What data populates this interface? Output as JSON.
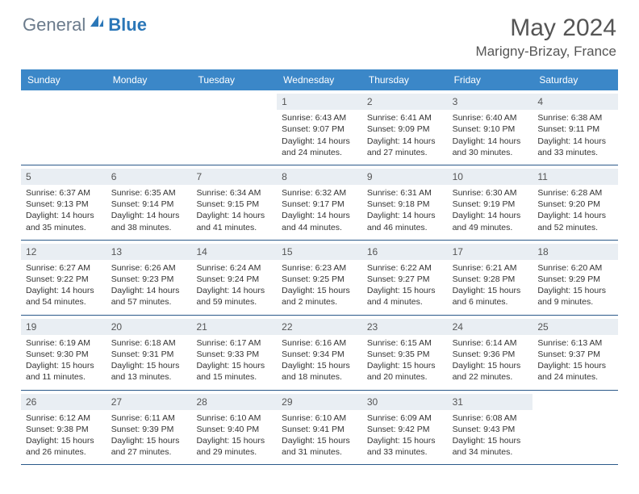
{
  "brand": {
    "part1": "General",
    "part2": "Blue"
  },
  "title": {
    "month": "May 2024",
    "location": "Marigny-Brizay, France"
  },
  "style": {
    "header_bg": "#3b87c8",
    "header_text": "#ffffff",
    "border_color": "#2b5a8a",
    "daynum_bg": "#e9eef3",
    "body_text": "#333333",
    "logo_gray": "#6b7b8c",
    "logo_blue": "#2b77b8"
  },
  "day_headers": [
    "Sunday",
    "Monday",
    "Tuesday",
    "Wednesday",
    "Thursday",
    "Friday",
    "Saturday"
  ],
  "weeks": [
    [
      {
        "n": "",
        "sr": "",
        "ss": "",
        "dl": ""
      },
      {
        "n": "",
        "sr": "",
        "ss": "",
        "dl": ""
      },
      {
        "n": "",
        "sr": "",
        "ss": "",
        "dl": ""
      },
      {
        "n": "1",
        "sr": "Sunrise: 6:43 AM",
        "ss": "Sunset: 9:07 PM",
        "dl": "Daylight: 14 hours and 24 minutes."
      },
      {
        "n": "2",
        "sr": "Sunrise: 6:41 AM",
        "ss": "Sunset: 9:09 PM",
        "dl": "Daylight: 14 hours and 27 minutes."
      },
      {
        "n": "3",
        "sr": "Sunrise: 6:40 AM",
        "ss": "Sunset: 9:10 PM",
        "dl": "Daylight: 14 hours and 30 minutes."
      },
      {
        "n": "4",
        "sr": "Sunrise: 6:38 AM",
        "ss": "Sunset: 9:11 PM",
        "dl": "Daylight: 14 hours and 33 minutes."
      }
    ],
    [
      {
        "n": "5",
        "sr": "Sunrise: 6:37 AM",
        "ss": "Sunset: 9:13 PM",
        "dl": "Daylight: 14 hours and 35 minutes."
      },
      {
        "n": "6",
        "sr": "Sunrise: 6:35 AM",
        "ss": "Sunset: 9:14 PM",
        "dl": "Daylight: 14 hours and 38 minutes."
      },
      {
        "n": "7",
        "sr": "Sunrise: 6:34 AM",
        "ss": "Sunset: 9:15 PM",
        "dl": "Daylight: 14 hours and 41 minutes."
      },
      {
        "n": "8",
        "sr": "Sunrise: 6:32 AM",
        "ss": "Sunset: 9:17 PM",
        "dl": "Daylight: 14 hours and 44 minutes."
      },
      {
        "n": "9",
        "sr": "Sunrise: 6:31 AM",
        "ss": "Sunset: 9:18 PM",
        "dl": "Daylight: 14 hours and 46 minutes."
      },
      {
        "n": "10",
        "sr": "Sunrise: 6:30 AM",
        "ss": "Sunset: 9:19 PM",
        "dl": "Daylight: 14 hours and 49 minutes."
      },
      {
        "n": "11",
        "sr": "Sunrise: 6:28 AM",
        "ss": "Sunset: 9:20 PM",
        "dl": "Daylight: 14 hours and 52 minutes."
      }
    ],
    [
      {
        "n": "12",
        "sr": "Sunrise: 6:27 AM",
        "ss": "Sunset: 9:22 PM",
        "dl": "Daylight: 14 hours and 54 minutes."
      },
      {
        "n": "13",
        "sr": "Sunrise: 6:26 AM",
        "ss": "Sunset: 9:23 PM",
        "dl": "Daylight: 14 hours and 57 minutes."
      },
      {
        "n": "14",
        "sr": "Sunrise: 6:24 AM",
        "ss": "Sunset: 9:24 PM",
        "dl": "Daylight: 14 hours and 59 minutes."
      },
      {
        "n": "15",
        "sr": "Sunrise: 6:23 AM",
        "ss": "Sunset: 9:25 PM",
        "dl": "Daylight: 15 hours and 2 minutes."
      },
      {
        "n": "16",
        "sr": "Sunrise: 6:22 AM",
        "ss": "Sunset: 9:27 PM",
        "dl": "Daylight: 15 hours and 4 minutes."
      },
      {
        "n": "17",
        "sr": "Sunrise: 6:21 AM",
        "ss": "Sunset: 9:28 PM",
        "dl": "Daylight: 15 hours and 6 minutes."
      },
      {
        "n": "18",
        "sr": "Sunrise: 6:20 AM",
        "ss": "Sunset: 9:29 PM",
        "dl": "Daylight: 15 hours and 9 minutes."
      }
    ],
    [
      {
        "n": "19",
        "sr": "Sunrise: 6:19 AM",
        "ss": "Sunset: 9:30 PM",
        "dl": "Daylight: 15 hours and 11 minutes."
      },
      {
        "n": "20",
        "sr": "Sunrise: 6:18 AM",
        "ss": "Sunset: 9:31 PM",
        "dl": "Daylight: 15 hours and 13 minutes."
      },
      {
        "n": "21",
        "sr": "Sunrise: 6:17 AM",
        "ss": "Sunset: 9:33 PM",
        "dl": "Daylight: 15 hours and 15 minutes."
      },
      {
        "n": "22",
        "sr": "Sunrise: 6:16 AM",
        "ss": "Sunset: 9:34 PM",
        "dl": "Daylight: 15 hours and 18 minutes."
      },
      {
        "n": "23",
        "sr": "Sunrise: 6:15 AM",
        "ss": "Sunset: 9:35 PM",
        "dl": "Daylight: 15 hours and 20 minutes."
      },
      {
        "n": "24",
        "sr": "Sunrise: 6:14 AM",
        "ss": "Sunset: 9:36 PM",
        "dl": "Daylight: 15 hours and 22 minutes."
      },
      {
        "n": "25",
        "sr": "Sunrise: 6:13 AM",
        "ss": "Sunset: 9:37 PM",
        "dl": "Daylight: 15 hours and 24 minutes."
      }
    ],
    [
      {
        "n": "26",
        "sr": "Sunrise: 6:12 AM",
        "ss": "Sunset: 9:38 PM",
        "dl": "Daylight: 15 hours and 26 minutes."
      },
      {
        "n": "27",
        "sr": "Sunrise: 6:11 AM",
        "ss": "Sunset: 9:39 PM",
        "dl": "Daylight: 15 hours and 27 minutes."
      },
      {
        "n": "28",
        "sr": "Sunrise: 6:10 AM",
        "ss": "Sunset: 9:40 PM",
        "dl": "Daylight: 15 hours and 29 minutes."
      },
      {
        "n": "29",
        "sr": "Sunrise: 6:10 AM",
        "ss": "Sunset: 9:41 PM",
        "dl": "Daylight: 15 hours and 31 minutes."
      },
      {
        "n": "30",
        "sr": "Sunrise: 6:09 AM",
        "ss": "Sunset: 9:42 PM",
        "dl": "Daylight: 15 hours and 33 minutes."
      },
      {
        "n": "31",
        "sr": "Sunrise: 6:08 AM",
        "ss": "Sunset: 9:43 PM",
        "dl": "Daylight: 15 hours and 34 minutes."
      },
      {
        "n": "",
        "sr": "",
        "ss": "",
        "dl": ""
      }
    ]
  ]
}
